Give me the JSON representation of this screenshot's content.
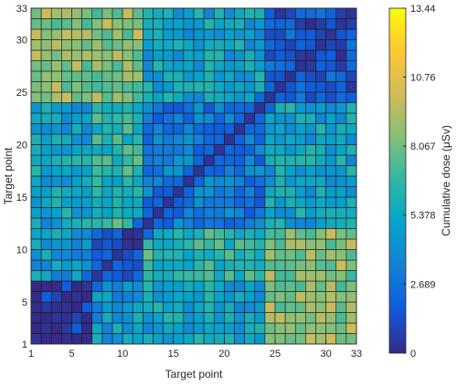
{
  "chart_data": {
    "type": "heatmap",
    "xlabel": "Target point",
    "ylabel": "Target point",
    "x_ticks": [
      "1",
      "5",
      "10",
      "15",
      "20",
      "25",
      "30",
      "33"
    ],
    "y_ticks": [
      "1",
      "5",
      "10",
      "15",
      "20",
      "25",
      "30",
      "33"
    ],
    "xlim": [
      1,
      33
    ],
    "ylim": [
      1,
      33
    ],
    "grid_size": 32,
    "colorbar": {
      "label": "Cumulative dose (μSv)",
      "min": 0,
      "max": 13.44,
      "tick_values": [
        0,
        2.689,
        5.378,
        8.067,
        10.76,
        13.44
      ],
      "tick_labels": [
        "0",
        "2.689",
        "5.378",
        "8.067",
        "10.76",
        "13.44"
      ],
      "colormap": "parula"
    },
    "cluster_boundaries": [
      0,
      6,
      11,
      23,
      32
    ],
    "block_values": [
      [
        0.8,
        4.5,
        5.0,
        8.5
      ],
      [
        4.5,
        1.5,
        6.5,
        8.5
      ],
      [
        5.0,
        6.5,
        3.0,
        5.0
      ],
      [
        8.5,
        8.5,
        5.0,
        1.5
      ]
    ]
  }
}
